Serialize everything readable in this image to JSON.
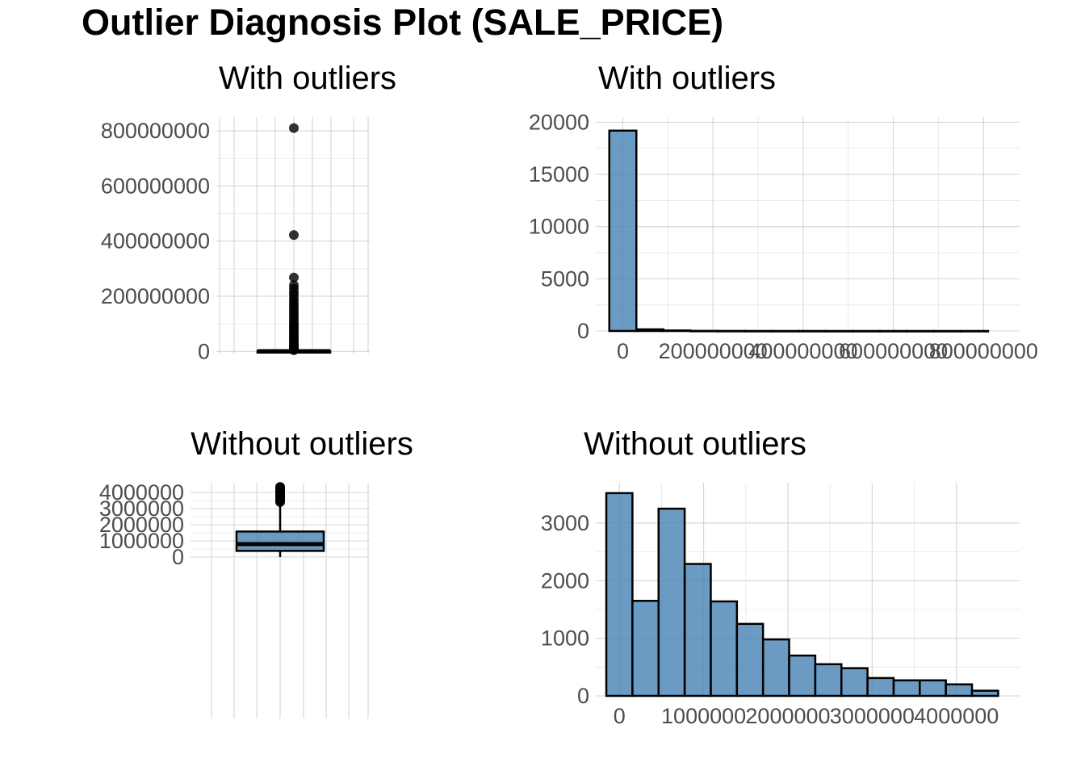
{
  "title": "Outlier Diagnosis Plot (SALE_PRICE)",
  "colors": {
    "fill": "#4682b4",
    "outline": "#000000",
    "grid": "#d4d4d4"
  },
  "chart_data": [
    {
      "type": "box",
      "title": "With outliers",
      "ylim": [
        -8000000,
        850000000
      ],
      "yticks": [
        0,
        200000000,
        400000000,
        600000000,
        800000000
      ],
      "yticklabels": [
        "0",
        "200000000",
        "400000000",
        "600000000",
        "800000000"
      ],
      "box": {
        "min": 0,
        "q1": 370000,
        "median": 800000,
        "q3": 1580000,
        "max": 3400000
      },
      "outliers": [
        810000000,
        422000000,
        268000000,
        240000000,
        228000000,
        215000000,
        205000000,
        192000000,
        180000000,
        170000000,
        160000000,
        150000000,
        140000000,
        130000000,
        120000000,
        110000000,
        100000000,
        92000000,
        84000000,
        76000000,
        68000000,
        60000000,
        52000000,
        45000000,
        38000000,
        31000000,
        25000000,
        20000000,
        15000000,
        11000000,
        8000000,
        6000000,
        4500000
      ]
    },
    {
      "type": "bar",
      "title": "With outliers",
      "xlim": [
        -60000000,
        880000000
      ],
      "ylim": [
        0,
        20500
      ],
      "xticks": [
        0,
        200000000,
        400000000,
        600000000,
        800000000
      ],
      "xticklabels": [
        "0",
        "200000000",
        "400000000",
        "600000000",
        "800000000"
      ],
      "yticks": [
        0,
        5000,
        10000,
        15000,
        20000
      ],
      "yticklabels": [
        "0",
        "5000",
        "10000",
        "15000",
        "20000"
      ],
      "bin_width": 60000000,
      "bin_centers": [
        0,
        60000000,
        120000000,
        180000000,
        240000000,
        300000000,
        360000000,
        420000000,
        480000000,
        540000000,
        600000000,
        660000000,
        720000000,
        780000000
      ],
      "values": [
        19200,
        160,
        50,
        12,
        6,
        3,
        1,
        1,
        0,
        0,
        0,
        0,
        0,
        1
      ]
    },
    {
      "type": "box",
      "title": "Without outliers",
      "ylim": [
        -10000000,
        4600000
      ],
      "yticks": [
        0,
        1000000,
        2000000,
        3000000,
        4000000
      ],
      "yticklabels": [
        "0",
        "1000000",
        "2000000",
        "3000000",
        "4000000"
      ],
      "box": {
        "min": 0,
        "q1": 380000,
        "median": 800000,
        "q3": 1580000,
        "max": 3350000
      },
      "outliers": [
        3400000,
        3450000,
        3500000,
        3550000,
        3600000,
        3650000,
        3700000,
        3750000,
        3800000,
        3850000,
        3900000,
        3950000,
        4000000,
        4050000,
        4100000,
        4150000,
        4200000,
        4250000,
        4300000,
        4350000
      ]
    },
    {
      "type": "bar",
      "title": "Without outliers",
      "xlim": [
        -280000,
        4750000
      ],
      "ylim": [
        0,
        3700
      ],
      "xticks": [
        0,
        1000000,
        2000000,
        3000000,
        4000000
      ],
      "xticklabels": [
        "0",
        "1000000",
        "2000000",
        "3000000",
        "4000000"
      ],
      "yticks": [
        0,
        1000,
        2000,
        3000
      ],
      "yticklabels": [
        "0",
        "1000",
        "2000",
        "3000"
      ],
      "bin_width": 310000,
      "bin_centers": [
        0,
        310000,
        620000,
        930000,
        1240000,
        1550000,
        1860000,
        2170000,
        2480000,
        2790000,
        3100000,
        3410000,
        3720000,
        4030000,
        4340000
      ],
      "values": [
        3520,
        1650,
        3250,
        2290,
        1640,
        1250,
        980,
        700,
        550,
        480,
        310,
        270,
        270,
        200,
        90
      ]
    }
  ]
}
